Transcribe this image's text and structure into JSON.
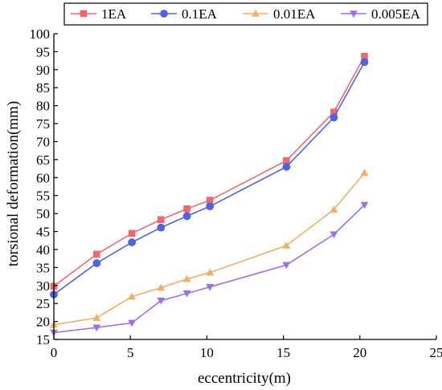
{
  "chart_data": {
    "type": "line",
    "title": "",
    "xlabel": "eccentricity(m)",
    "ylabel": "torsional deformation(mm)",
    "xlim": [
      0,
      25
    ],
    "ylim": [
      15,
      100
    ],
    "xticks": [
      0,
      5,
      10,
      15,
      20,
      25
    ],
    "yticks": [
      15,
      20,
      25,
      30,
      35,
      40,
      45,
      50,
      55,
      60,
      65,
      70,
      75,
      80,
      85,
      90,
      95,
      100
    ],
    "grid": false,
    "legend_position": "top",
    "series": [
      {
        "name": "1EA",
        "marker": "square",
        "color": "#f0676f",
        "x": [
          0,
          2.8,
          5.1,
          7.0,
          8.7,
          10.2,
          15.2,
          18.3,
          20.3
        ],
        "y": [
          29.8,
          38.7,
          44.5,
          48.3,
          51.3,
          53.7,
          64.7,
          78.2,
          93.7
        ]
      },
      {
        "name": "0.1EA",
        "marker": "circle",
        "color": "#4f63e3",
        "x": [
          0,
          2.8,
          5.1,
          7.0,
          8.7,
          10.2,
          15.2,
          18.3,
          20.3
        ],
        "y": [
          27.5,
          36.2,
          42.0,
          46.1,
          49.3,
          52.0,
          63.0,
          76.7,
          92.1
        ]
      },
      {
        "name": "0.01EA",
        "marker": "triangle-up",
        "color": "#f4ad63",
        "x": [
          0,
          2.8,
          5.1,
          7.0,
          8.7,
          10.2,
          15.2,
          18.3,
          20.3
        ],
        "y": [
          19.1,
          21.0,
          26.9,
          29.4,
          31.8,
          33.6,
          41.1,
          51.1,
          61.3
        ]
      },
      {
        "name": "0.005EA",
        "marker": "triangle-down",
        "color": "#9b6ef2",
        "x": [
          0,
          2.8,
          5.1,
          7.0,
          8.7,
          10.2,
          15.2,
          18.3,
          20.3
        ],
        "y": [
          16.9,
          18.3,
          19.6,
          25.8,
          27.8,
          29.6,
          35.7,
          44.2,
          52.4
        ]
      }
    ]
  }
}
